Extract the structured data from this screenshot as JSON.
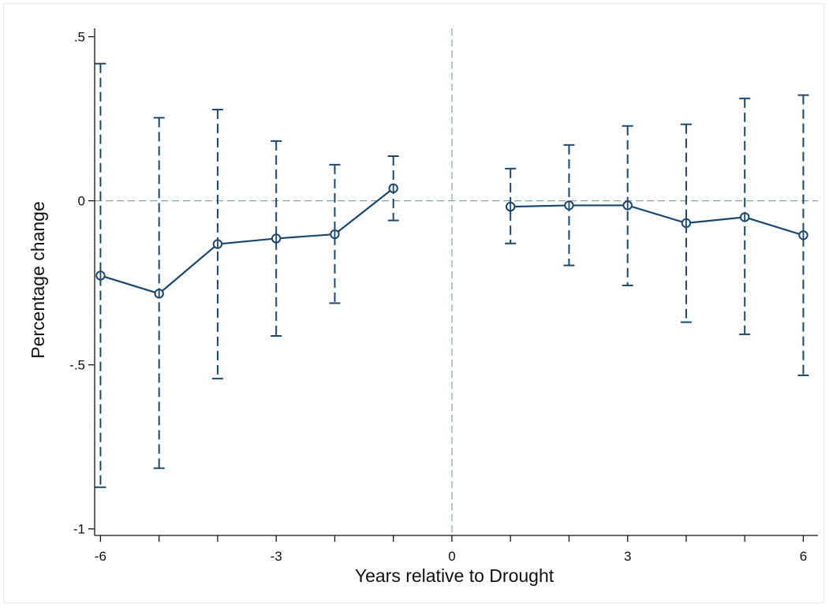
{
  "chart_data": {
    "type": "line",
    "title": "",
    "xlabel": "Years relative to Drought",
    "ylabel": "Percentage change",
    "xlim": [
      -6.1,
      6.25
    ],
    "ylim": [
      -1.02,
      0.535
    ],
    "x_ticks": [
      -6,
      -5,
      -4,
      -3,
      -2,
      -1,
      0,
      1,
      2,
      3,
      4,
      5,
      6
    ],
    "x_tick_labels": [
      "-6",
      "",
      "",
      "-3",
      "",
      "",
      "0",
      "",
      "",
      "3",
      "",
      "",
      "6"
    ],
    "y_ticks": [
      0.5,
      0,
      -0.5,
      -1
    ],
    "y_tick_labels": [
      ".5",
      "0",
      "-.5",
      "-1"
    ],
    "reference_lines": {
      "x": 0,
      "y": 0
    },
    "grid": false,
    "legend": "none",
    "colors": {
      "series": "#1a476f",
      "reference": "#8aa0a3",
      "axis": "#111111"
    },
    "series": [
      {
        "x": [
          -6,
          -5,
          -4,
          -3,
          -2,
          -1
        ],
        "values": [
          -0.228,
          -0.283,
          -0.132,
          -0.115,
          -0.102,
          0.038
        ],
        "ci_low": [
          -0.873,
          -0.815,
          -0.542,
          -0.412,
          -0.312,
          -0.06
        ],
        "ci_high": [
          0.418,
          0.253,
          0.278,
          0.182,
          0.11,
          0.136
        ]
      },
      {
        "x": [
          1,
          2,
          3,
          4,
          5,
          6
        ],
        "values": [
          -0.018,
          -0.014,
          -0.014,
          -0.068,
          -0.05,
          -0.105
        ],
        "ci_low": [
          -0.13,
          -0.197,
          -0.258,
          -0.37,
          -0.407,
          -0.532
        ],
        "ci_high": [
          0.098,
          0.17,
          0.228,
          0.233,
          0.312,
          0.322
        ]
      }
    ]
  }
}
